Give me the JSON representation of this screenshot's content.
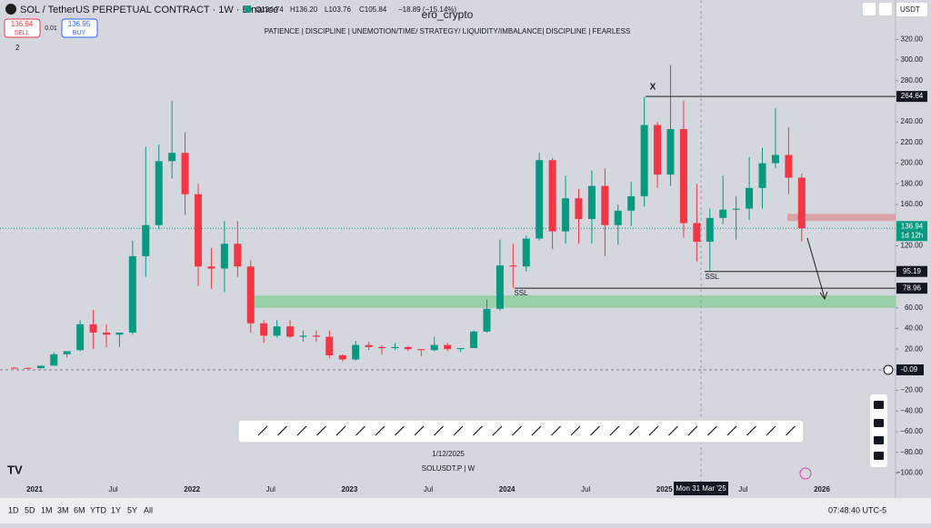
{
  "header": {
    "symbol": "SOL / TetherUS PERPETUAL CONTRACT · 1W · Binance",
    "legend": [
      "O124.74",
      "H136.20",
      "L103.76",
      "C105.84",
      "−18.89 (−15.14%)"
    ],
    "author": "ero_crypto",
    "tagline": "PATIENCE   |   DISCIPLINE   |   UNEMOTION/TIME/ STRATEGY/ LIQUIDITY/IMBALANCE|   DISCIPLINE   |   FEARLESS",
    "sell_price": "136.94",
    "sell": "SELL",
    "spread": "0.01",
    "buy_price": "136.95",
    "buy": "BUY",
    "indicators": "2",
    "currency": "USDT"
  },
  "chart_data": {
    "type": "candlestick",
    "x": [
      "2020-11",
      "2020-12",
      "2021-01",
      "2021-02",
      "2021-03",
      "2021-04",
      "2021-05",
      "2021-06",
      "2021-07",
      "2021-08",
      "2021-09",
      "2021-10",
      "2021-11",
      "2021-12",
      "2022-01",
      "2022-02",
      "2022-03",
      "2022-04",
      "2022-05",
      "2022-06",
      "2022-07",
      "2022-08",
      "2022-09",
      "2022-10",
      "2022-11",
      "2022-12",
      "2023-01",
      "2023-02",
      "2023-03",
      "2023-04",
      "2023-05",
      "2023-06",
      "2023-07",
      "2023-08",
      "2023-09",
      "2023-10",
      "2023-11",
      "2023-12",
      "2024-01",
      "2024-02",
      "2024-03",
      "2024-04",
      "2024-05",
      "2024-06",
      "2024-07",
      "2024-08",
      "2024-09",
      "2024-10",
      "2024-11",
      "2024-12",
      "2025-01",
      "2025-02",
      "2025-03",
      "2025-04",
      "2025-05",
      "2025-06",
      "2025-07",
      "2025-08",
      "2025-09",
      "2025-10",
      "2025-11"
    ],
    "open": [
      2.0,
      1.8,
      1.5,
      4,
      15,
      19,
      44,
      36,
      34,
      36,
      110,
      140,
      202,
      210,
      170,
      100,
      98,
      122,
      100,
      45,
      33,
      42,
      32,
      33,
      32,
      14,
      10,
      24,
      22,
      21,
      22,
      20,
      19,
      24,
      20,
      21,
      37,
      59,
      101,
      100,
      127,
      203,
      134,
      166,
      146,
      178,
      140,
      154,
      168,
      237,
      189,
      233,
      142,
      124,
      147,
      155,
      156,
      176,
      200,
      208,
      186
    ],
    "high": [
      2.6,
      2.2,
      4.0,
      17,
      18,
      48,
      58,
      44,
      36,
      125,
      216,
      218,
      260,
      230,
      180,
      118,
      144,
      144,
      106,
      48,
      48,
      48,
      38,
      38,
      38,
      15,
      28,
      27,
      24,
      26,
      23,
      20,
      32,
      26,
      21,
      38,
      68,
      126,
      122,
      130,
      210,
      205,
      188,
      175,
      193,
      195,
      160,
      182,
      264,
      240,
      295,
      260,
      180,
      156,
      188,
      168,
      206,
      215,
      253,
      235,
      190
    ],
    "low": [
      1.6,
      1.3,
      1.4,
      3.9,
      12,
      18,
      20,
      22,
      22,
      34,
      90,
      136,
      185,
      150,
      81,
      78,
      75,
      90,
      36,
      26,
      31,
      31,
      27,
      27,
      11,
      8,
      9,
      19,
      15,
      19,
      18,
      13,
      18,
      18,
      17,
      21,
      36,
      57,
      79,
      95,
      125,
      117,
      122,
      122,
      122,
      110,
      121,
      139,
      158,
      176,
      178,
      128,
      105,
      95,
      141,
      126,
      145,
      156,
      195,
      170,
      124
    ],
    "close": [
      1.8,
      1.5,
      3.9,
      15,
      18,
      44,
      36,
      34,
      36,
      110,
      140,
      202,
      210,
      170,
      100,
      98,
      122,
      100,
      45,
      33,
      42,
      32,
      33,
      32,
      14,
      10,
      24,
      22,
      21,
      22,
      20,
      19,
      24,
      20,
      21,
      37,
      59,
      101,
      100,
      127,
      203,
      134,
      166,
      146,
      178,
      140,
      154,
      168,
      237,
      189,
      233,
      142,
      124,
      147,
      155,
      156,
      176,
      200,
      208,
      186,
      137
    ],
    "up_color": "#089981",
    "down_color": "#f23645",
    "ylim": [
      -118,
      358
    ],
    "yticks": [
      {
        "value": 320,
        "label": "320.00"
      },
      {
        "value": 300,
        "label": "300.00"
      },
      {
        "value": 280,
        "label": "280.00"
      },
      {
        "value": 240,
        "label": "240.00"
      },
      {
        "value": 220,
        "label": "220.00"
      },
      {
        "value": 200,
        "label": "200.00"
      },
      {
        "value": 180,
        "label": "180.00"
      },
      {
        "value": 160,
        "label": "160.00"
      },
      {
        "value": 120,
        "label": "120.00"
      },
      {
        "value": 60,
        "label": "60.00"
      },
      {
        "value": 40,
        "label": "40.00"
      },
      {
        "value": 20,
        "label": "20.00"
      },
      {
        "value": -20,
        "label": "−20.00"
      },
      {
        "value": -40,
        "label": "−40.00"
      },
      {
        "value": -60,
        "label": "−60.00"
      },
      {
        "value": -80,
        "label": "−80.00"
      },
      {
        "value": -100,
        "label": "−100.00"
      }
    ],
    "x_labels": [
      "2021",
      "Jul",
      "2022",
      "Jul",
      "2023",
      "Jul",
      "2024",
      "Jul",
      "2025",
      "Jul",
      "2026"
    ],
    "levels": [
      264.64,
      95.19,
      78.96
    ],
    "current_price": 136.94,
    "countdown": "1d 12h",
    "crosshair_price": -0.09,
    "crosshair_date": "Mon 31 Mar '25",
    "zones": [
      {
        "low": 60,
        "high": 72,
        "color": "#8fcf9e"
      },
      {
        "low": 144,
        "high": 151,
        "color": "#d79aa0"
      }
    ],
    "annotations": [
      "X",
      "SSL",
      "SSL"
    ]
  },
  "footer": {
    "date": "1/12/2025",
    "symbol": "SOLUSDT.P  |  W",
    "ranges": [
      "1D",
      "5D",
      "1M",
      "3M",
      "6M",
      "YTD",
      "1Y",
      "5Y",
      "All"
    ],
    "clock": "07:48:40 UTC-5"
  }
}
